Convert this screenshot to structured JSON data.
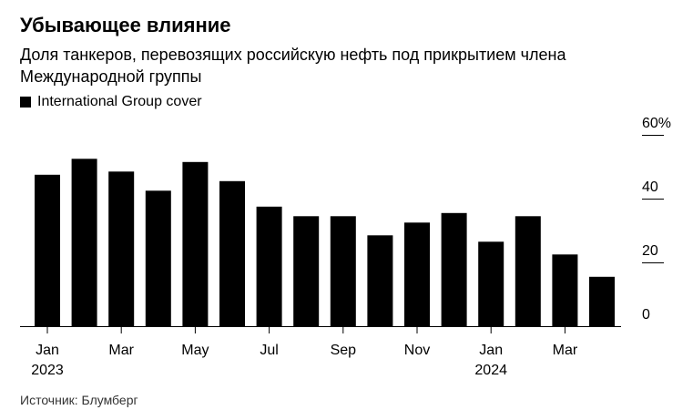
{
  "title": "Убывающее влияние",
  "subtitle": "Доля танкеров, перевозящих российскую нефть под прикрытием члена Международной группы",
  "source": "Источник: Блумберг",
  "colors": {
    "bar": "#000000",
    "axis": "#000000",
    "text": "#000000"
  },
  "chart_data": {
    "type": "bar",
    "title": "Убывающее влияние",
    "subtitle": "Доля танкеров, перевозящих российскую нефть под прикрытием члена Международной группы",
    "legend": "top-left",
    "grid": false,
    "series": [
      {
        "name": "International Group cover",
        "values": [
          47.5,
          52.5,
          48.5,
          42.5,
          51.5,
          45.5,
          37.5,
          34.5,
          34.5,
          28.5,
          32.5,
          35.5,
          26.5,
          34.5,
          22.5,
          15.5
        ]
      }
    ],
    "x": [
      "2023-01",
      "2023-02",
      "2023-03",
      "2023-04",
      "2023-05",
      "2023-06",
      "2023-07",
      "2023-08",
      "2023-09",
      "2023-10",
      "2023-11",
      "2023-12",
      "2024-01",
      "2024-02",
      "2024-03",
      "2024-04"
    ],
    "x_ticks": [
      {
        "label": "Jan",
        "year": "2023",
        "index": 0
      },
      {
        "label": "Mar",
        "year": "",
        "index": 2
      },
      {
        "label": "May",
        "year": "",
        "index": 4
      },
      {
        "label": "Jul",
        "year": "",
        "index": 6
      },
      {
        "label": "Sep",
        "year": "",
        "index": 8
      },
      {
        "label": "Nov",
        "year": "",
        "index": 10
      },
      {
        "label": "Jan",
        "year": "2024",
        "index": 12
      },
      {
        "label": "Mar",
        "year": "",
        "index": 14
      }
    ],
    "y_ticks": [
      {
        "value": 0,
        "label": "0"
      },
      {
        "value": 20,
        "label": "20"
      },
      {
        "value": 40,
        "label": "40"
      },
      {
        "value": 60,
        "label": "60%"
      }
    ],
    "ylim": [
      0,
      60
    ],
    "y_axis_side": "right"
  }
}
